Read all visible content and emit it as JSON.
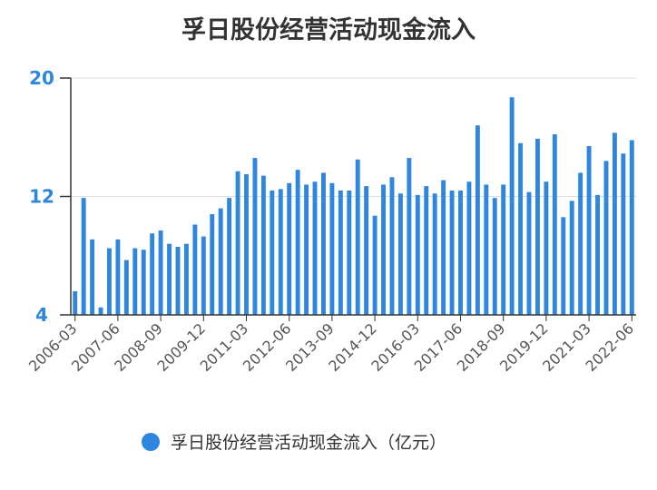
{
  "chart_data": {
    "type": "bar",
    "title": "孚日股份经营活动现金流入",
    "xlabel": "",
    "ylabel": "",
    "ylim": [
      4,
      20
    ],
    "yticks": [
      4,
      12,
      20
    ],
    "grid": true,
    "legend_position": "bottom",
    "bar_color": "#2e86de",
    "tick_label_color": "#2e86de",
    "xtick_labels": [
      "2006-03",
      "2007-06",
      "2008-09",
      "2009-12",
      "2011-03",
      "2012-06",
      "2013-09",
      "2014-12",
      "2016-03",
      "2017-06",
      "2018-09",
      "2019-12",
      "2021-03",
      "2022-06"
    ],
    "series": [
      {
        "name": "孚日股份经营活动现金流入（亿元）",
        "values": [
          5.6,
          11.9,
          9.1,
          4.5,
          8.5,
          9.1,
          7.7,
          8.5,
          8.4,
          9.5,
          9.7,
          8.8,
          8.6,
          8.8,
          10.1,
          9.3,
          10.8,
          11.2,
          11.9,
          13.7,
          13.5,
          14.6,
          13.4,
          12.4,
          12.5,
          12.9,
          13.8,
          12.8,
          13.0,
          13.6,
          12.9,
          12.4,
          12.4,
          14.5,
          12.7,
          10.7,
          12.8,
          13.3,
          12.2,
          14.6,
          12.1,
          12.7,
          12.2,
          13.1,
          12.4,
          12.4,
          13.0,
          16.8,
          12.8,
          11.9,
          12.8,
          18.7,
          15.6,
          12.3,
          15.9,
          13.0,
          16.2,
          10.6,
          11.7,
          13.6,
          15.4,
          12.1,
          14.4,
          16.3,
          14.9,
          15.8
        ]
      }
    ]
  }
}
